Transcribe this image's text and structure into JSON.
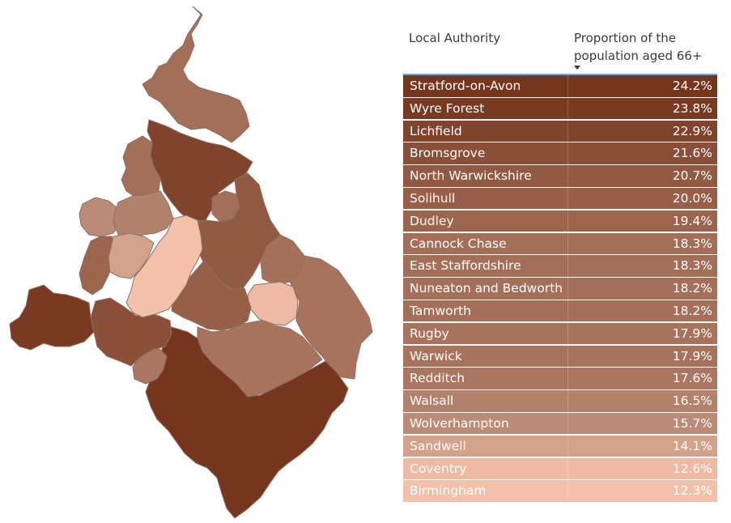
{
  "table": {
    "header_authority": "Local Authority",
    "header_proportion": "Proportion of the population aged 66+",
    "sort_icon": "sort-descending-icon",
    "rows": [
      {
        "name": "Stratford-on-Avon",
        "value": "24.2%",
        "color": "#76361d"
      },
      {
        "name": "Wyre Forest",
        "value": "23.8%",
        "color": "#793a21"
      },
      {
        "name": "Lichfield",
        "value": "22.9%",
        "color": "#80432b"
      },
      {
        "name": "Bromsgrove",
        "value": "21.6%",
        "color": "#8a4f38"
      },
      {
        "name": "North Warwickshire",
        "value": "20.7%",
        "color": "#915a42"
      },
      {
        "name": "Solihull",
        "value": "20.0%",
        "color": "#975f48"
      },
      {
        "name": "Dudley",
        "value": "19.4%",
        "color": "#9c654e"
      },
      {
        "name": "Cannock Chase",
        "value": "18.3%",
        "color": "#a46f58"
      },
      {
        "name": "East Staffordshire",
        "value": "18.3%",
        "color": "#a46f58"
      },
      {
        "name": "Nuneaton and Bedworth",
        "value": "18.2%",
        "color": "#a5705a"
      },
      {
        "name": "Tamworth",
        "value": "18.2%",
        "color": "#a5705a"
      },
      {
        "name": "Rugby",
        "value": "17.9%",
        "color": "#a8735d"
      },
      {
        "name": "Warwick",
        "value": "17.9%",
        "color": "#a8735d"
      },
      {
        "name": "Redditch",
        "value": "17.6%",
        "color": "#aa7661"
      },
      {
        "name": "Walsall",
        "value": "16.5%",
        "color": "#b3826c"
      },
      {
        "name": "Wolverhampton",
        "value": "15.7%",
        "color": "#ba8c77"
      },
      {
        "name": "Sandwell",
        "value": "14.1%",
        "color": "#d3a28b"
      },
      {
        "name": "Coventry",
        "value": "12.6%",
        "color": "#efbaa3"
      },
      {
        "name": "Birmingham",
        "value": "12.3%",
        "color": "#f3c0aa"
      }
    ]
  },
  "map": {
    "regions": [
      {
        "id": "Stratford-on-Avon",
        "color": "#76361d"
      },
      {
        "id": "Wyre Forest",
        "color": "#793a21"
      },
      {
        "id": "Lichfield",
        "color": "#80432b"
      },
      {
        "id": "Bromsgrove",
        "color": "#8a4f38"
      },
      {
        "id": "North Warwickshire",
        "color": "#915a42"
      },
      {
        "id": "Solihull",
        "color": "#975f48"
      },
      {
        "id": "Dudley",
        "color": "#9c654e"
      },
      {
        "id": "Cannock Chase",
        "color": "#a46f58"
      },
      {
        "id": "East Staffordshire",
        "color": "#a46f58"
      },
      {
        "id": "Nuneaton and Bedworth",
        "color": "#a5705a"
      },
      {
        "id": "Tamworth",
        "color": "#a5705a"
      },
      {
        "id": "Rugby",
        "color": "#a8735d"
      },
      {
        "id": "Warwick",
        "color": "#a8735d"
      },
      {
        "id": "Redditch",
        "color": "#aa7661"
      },
      {
        "id": "Walsall",
        "color": "#b3826c"
      },
      {
        "id": "Wolverhampton",
        "color": "#ba8c77"
      },
      {
        "id": "Sandwell",
        "color": "#d3a28b"
      },
      {
        "id": "Coventry",
        "color": "#efbaa3"
      },
      {
        "id": "Birmingham",
        "color": "#f3c0aa"
      }
    ]
  }
}
